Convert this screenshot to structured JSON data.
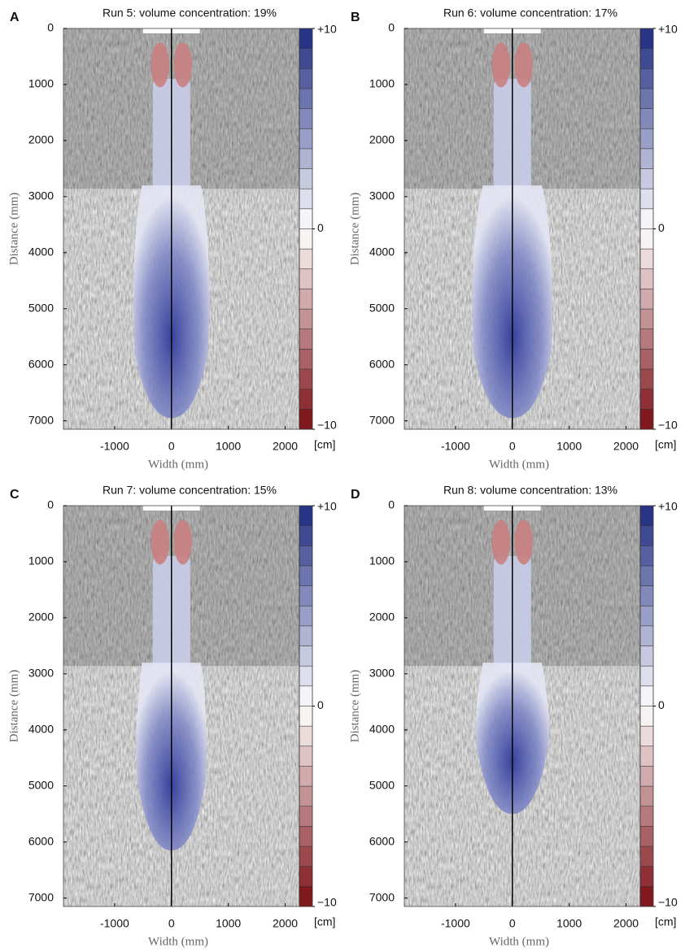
{
  "chart_data": [
    {
      "type": "image",
      "panel": "A",
      "title": "Run 5: volume concentration: 19%",
      "x_label": "Width (mm)",
      "y_label": "Distance (mm)",
      "xlim": [
        -1900,
        2250
      ],
      "ylim": [
        0,
        7150
      ],
      "y_inverted": true,
      "xticks": [
        -1000,
        0,
        1000,
        2000
      ],
      "yticks": [
        0,
        1000,
        2000,
        3000,
        4000,
        5000,
        6000,
        7000
      ],
      "reference_line_x": 0,
      "colorbar": {
        "lim": [
          -10,
          10
        ],
        "steps": 20,
        "ticks": [
          {
            "value": 10,
            "label": "+10"
          },
          0,
          {
            "value": -10,
            "label": "−10"
          }
        ],
        "label": "[cm]",
        "colors": [
          "#7a0c12",
          "#ffffff",
          "#1d2a80"
        ]
      }
    },
    {
      "type": "image",
      "panel": "B",
      "title": "Run 6: volume concentration: 17%",
      "x_label": "Width (mm)",
      "y_label": "Distance (mm)",
      "xlim": [
        -1900,
        2250
      ],
      "ylim": [
        0,
        7150
      ],
      "y_inverted": true,
      "xticks": [
        -1000,
        0,
        1000,
        2000
      ],
      "yticks": [
        0,
        1000,
        2000,
        3000,
        4000,
        5000,
        6000,
        7000
      ],
      "reference_line_x": 0,
      "colorbar": {
        "lim": [
          -10,
          10
        ],
        "steps": 20,
        "ticks": [
          {
            "value": 10,
            "label": "+10"
          },
          0,
          {
            "value": -10,
            "label": "−10"
          }
        ],
        "label": "[cm]",
        "colors": [
          "#7a0c12",
          "#ffffff",
          "#1d2a80"
        ]
      }
    },
    {
      "type": "image",
      "panel": "C",
      "title": "Run 7: volume concentration: 15%",
      "x_label": "Width (mm)",
      "y_label": "Distance (mm)",
      "xlim": [
        -1900,
        2250
      ],
      "ylim": [
        0,
        7150
      ],
      "y_inverted": true,
      "xticks": [
        -1000,
        0,
        1000,
        2000
      ],
      "yticks": [
        0,
        1000,
        2000,
        3000,
        4000,
        5000,
        6000,
        7000
      ],
      "reference_line_x": 0,
      "colorbar": {
        "lim": [
          -10,
          10
        ],
        "steps": 20,
        "ticks": [
          {
            "value": 10,
            "label": "+10"
          },
          0,
          {
            "value": -10,
            "label": "−10"
          }
        ],
        "label": "[cm]",
        "colors": [
          "#7a0c12",
          "#ffffff",
          "#1d2a80"
        ]
      }
    },
    {
      "type": "image",
      "panel": "D",
      "title": "Run 8: volume concentration: 13%",
      "x_label": "Width (mm)",
      "y_label": "Distance (mm)",
      "xlim": [
        -1900,
        2250
      ],
      "ylim": [
        0,
        7150
      ],
      "y_inverted": true,
      "xticks": [
        -1000,
        0,
        1000,
        2000
      ],
      "yticks": [
        0,
        1000,
        2000,
        3000,
        4000,
        5000,
        6000,
        7000
      ],
      "reference_line_x": 0,
      "colorbar": {
        "lim": [
          -10,
          10
        ],
        "steps": 20,
        "ticks": [
          {
            "value": 10,
            "label": "+10"
          },
          0,
          {
            "value": -10,
            "label": "−10"
          }
        ],
        "label": "[cm]",
        "colors": [
          "#7a0c12",
          "#ffffff",
          "#1d2a80"
        ]
      }
    }
  ]
}
